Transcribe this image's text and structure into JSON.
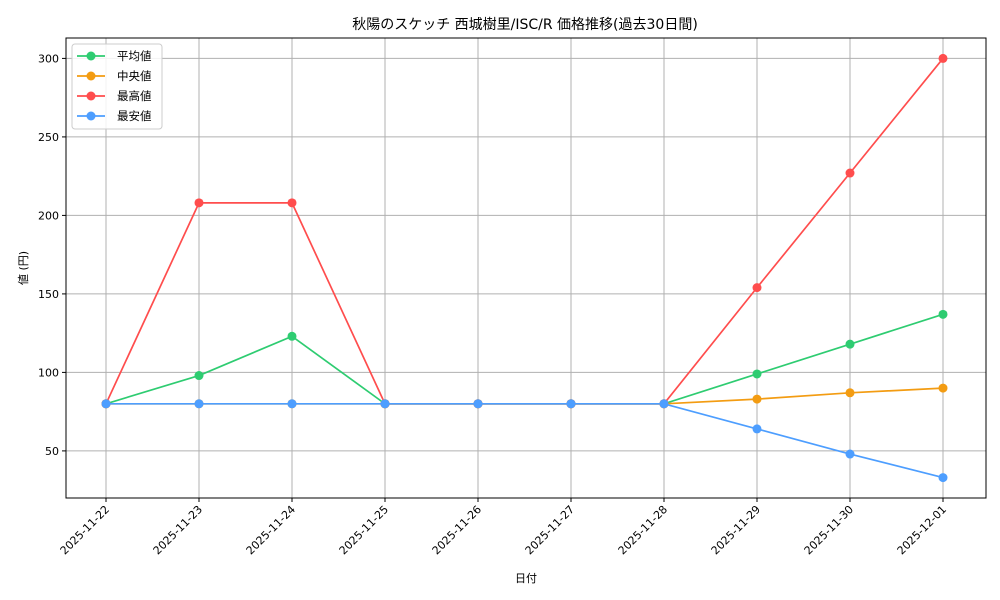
{
  "chart_data": {
    "type": "line",
    "title": "秋陽のスケッチ 西城樹里/ISC/R 価格推移(過去30日間)",
    "xlabel": "日付",
    "ylabel": "値 (円)",
    "categories": [
      "2025-11-22",
      "2025-11-23",
      "2025-11-24",
      "2025-11-25",
      "2025-11-26",
      "2025-11-27",
      "2025-11-28",
      "2025-11-29",
      "2025-11-30",
      "2025-12-01"
    ],
    "ylim": [
      20,
      313
    ],
    "yticks": [
      50,
      100,
      150,
      200,
      250,
      300
    ],
    "grid": true,
    "legend_position": "upper left",
    "series": [
      {
        "name": "平均値",
        "color": "#2ecc71",
        "values": [
          80,
          98,
          123,
          80,
          80,
          80,
          80,
          99,
          118,
          137
        ]
      },
      {
        "name": "中央値",
        "color": "#f39c12",
        "values": [
          80,
          80,
          80,
          80,
          80,
          80,
          80,
          83,
          87,
          90
        ]
      },
      {
        "name": "最高値",
        "color": "#ff4d4d",
        "values": [
          80,
          208,
          208,
          80,
          80,
          80,
          80,
          154,
          227,
          300
        ]
      },
      {
        "name": "最安値",
        "color": "#4d9eff",
        "values": [
          80,
          80,
          80,
          80,
          80,
          80,
          80,
          64,
          48,
          33
        ]
      }
    ]
  }
}
